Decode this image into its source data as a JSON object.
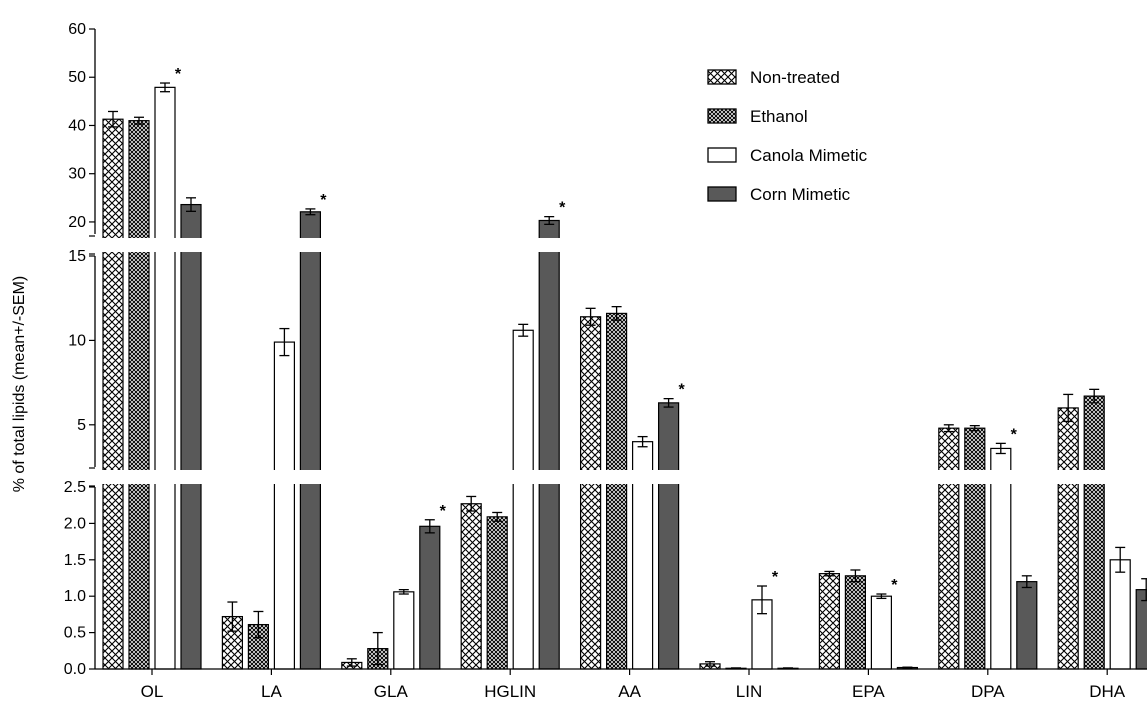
{
  "chart_data": {
    "type": "bar",
    "ylabel": "% of total lipids (mean+/-SEM)",
    "xlabel": "",
    "title": "",
    "categories": [
      "OL",
      "LA",
      "GLA",
      "HGLIN",
      "AA",
      "LIN",
      "EPA",
      "DPA",
      "DHA"
    ],
    "y_axis_segments": [
      {
        "range": [
          0,
          2.5
        ],
        "ticks": [
          "0.0",
          "0.5",
          "1.0",
          "1.5",
          "2.0",
          "2.5"
        ]
      },
      {
        "range": [
          2.5,
          15
        ],
        "ticks": [
          "5",
          "10",
          "15"
        ]
      },
      {
        "range": [
          17.5,
          60
        ],
        "ticks": [
          "20",
          "30",
          "40",
          "50",
          "60"
        ]
      }
    ],
    "series": [
      {
        "name": "Non-treated",
        "pattern": "crosshatch",
        "values": [
          41.3,
          0.72,
          0.09,
          2.27,
          11.4,
          0.07,
          1.31,
          4.8,
          6.0
        ],
        "errors": [
          1.6,
          0.2,
          0.05,
          0.1,
          0.5,
          0.03,
          0.03,
          0.2,
          0.8
        ]
      },
      {
        "name": "Ethanol",
        "pattern": "dense-crosshatch",
        "values": [
          41.0,
          0.61,
          0.28,
          2.09,
          11.6,
          0.01,
          1.28,
          4.8,
          6.7
        ],
        "errors": [
          0.7,
          0.18,
          0.22,
          0.06,
          0.4,
          0.005,
          0.08,
          0.15,
          0.4
        ]
      },
      {
        "name": "Canola Mimetic",
        "pattern": "white",
        "values": [
          47.9,
          9.9,
          1.06,
          10.6,
          4.0,
          0.95,
          1.0,
          3.6,
          1.5
        ],
        "errors": [
          0.9,
          0.8,
          0.03,
          0.35,
          0.3,
          0.19,
          0.03,
          0.3,
          0.17
        ]
      },
      {
        "name": "Corn Mimetic",
        "pattern": "darkgray",
        "values": [
          23.6,
          22.1,
          1.96,
          20.3,
          6.3,
          0.01,
          0.02,
          1.2,
          1.09
        ],
        "errors": [
          1.4,
          0.6,
          0.09,
          0.8,
          0.25,
          0.005,
          0.005,
          0.08,
          0.15
        ]
      }
    ],
    "significance_marker": "*",
    "significance": [
      {
        "category": "OL",
        "series": "Canola Mimetic"
      },
      {
        "category": "LA",
        "series": "Corn Mimetic"
      },
      {
        "category": "GLA",
        "series": "Corn Mimetic"
      },
      {
        "category": "HGLIN",
        "series": "Corn Mimetic"
      },
      {
        "category": "AA",
        "series": "Corn Mimetic"
      },
      {
        "category": "LIN",
        "series": "Canola Mimetic"
      },
      {
        "category": "EPA",
        "series": "Canola Mimetic"
      },
      {
        "category": "DPA",
        "series": "Canola Mimetic"
      }
    ],
    "legend_position": "top-right",
    "grid": false,
    "colors": {
      "bar_fill_dark": "#595959",
      "axis": "#000000",
      "background": "#ffffff"
    }
  }
}
